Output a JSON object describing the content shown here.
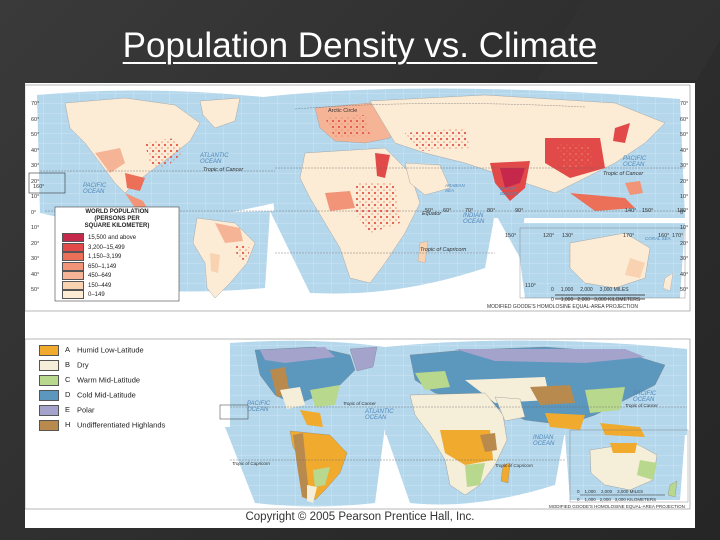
{
  "slide_title": "Population Density vs. Climate",
  "copyright": "Copyright © 2005 Pearson Prentice Hall, Inc.",
  "population_map": {
    "legend_title_lines": [
      "WORLD POPULATION",
      "(PERSONS PER",
      "SQUARE KILOMETER)"
    ],
    "legend": [
      {
        "label": "15,500 and above",
        "color": "#c6284c"
      },
      {
        "label": "3,200–15,499",
        "color": "#e24a4a"
      },
      {
        "label": "1,150–3,199",
        "color": "#ec7058"
      },
      {
        "label": "650–1,149",
        "color": "#f29478"
      },
      {
        "label": "450–649",
        "color": "#f6b496"
      },
      {
        "label": "150–449",
        "color": "#f9d2b2"
      },
      {
        "label": "0–149",
        "color": "#fcebd5"
      }
    ],
    "oceans": {
      "arctic": "Arctic Circle",
      "atlantic": [
        "ATLANTIC",
        "OCEAN"
      ],
      "pacific_w": [
        "PACIFIC",
        "OCEAN"
      ],
      "pacific_e": [
        "PACIFIC",
        "OCEAN"
      ],
      "indian": [
        "INDIAN",
        "OCEAN"
      ],
      "arabian": [
        "ARABIAN",
        "SEA"
      ],
      "bengal": [
        "BAY OF",
        "BENGAL"
      ],
      "coral": [
        "CORAL SEA"
      ]
    },
    "lines": {
      "cancer_w": "Tropic of Cancer",
      "cancer_e": "Tropic of Cancer",
      "equator": "Equator",
      "capricorn": "Tropic of Capricorn"
    },
    "scale": {
      "miles": [
        "0",
        "1,000",
        "2,000",
        "3,000 MILES"
      ],
      "km": [
        "0",
        "1,000",
        "2,000",
        "3,000 KILOMETERS"
      ]
    },
    "projection": "MODIFIED GOODE'S HOMOLOSINE EQUAL-AREA PROJECTION",
    "lat_labels_left": [
      "70°",
      "60°",
      "50°",
      "40°",
      "30°",
      "20°",
      "10°",
      "0°",
      "10°",
      "20°",
      "30°",
      "40°",
      "50°"
    ],
    "lat_labels_right": [
      "70°",
      "60°",
      "50°",
      "40°",
      "30°",
      "20°",
      "10°",
      "0°",
      "10°",
      "20°",
      "30°",
      "40°",
      "50°"
    ],
    "lon_labels": [
      "160°",
      "150°",
      "170°",
      "50°",
      "60°",
      "70°",
      "80°",
      "90°",
      "110°",
      "120°",
      "130°",
      "140°",
      "150°",
      "160°",
      "170°",
      "180°"
    ]
  },
  "climate_map": {
    "legend": [
      {
        "code": "A",
        "label": "Humid Low-Latitude",
        "color": "#f0ab2f"
      },
      {
        "code": "B",
        "label": "Dry",
        "color": "#f5eed9"
      },
      {
        "code": "C",
        "label": "Warm Mid-Latitude",
        "color": "#b8d88d"
      },
      {
        "code": "D",
        "label": "Cold Mid-Latitude",
        "color": "#5c97bd"
      },
      {
        "code": "E",
        "label": "Polar",
        "color": "#a3a3cc"
      },
      {
        "code": "H",
        "label": "Undifferentiated Highlands",
        "color": "#b98a4e"
      }
    ],
    "oceans": {
      "pacific_w": [
        "PACIFIC",
        "OCEAN"
      ],
      "atlantic": [
        "ATLANTIC",
        "OCEAN"
      ],
      "indian": [
        "INDIAN",
        "OCEAN"
      ],
      "pacific_e": [
        "PACIFIC",
        "OCEAN"
      ]
    },
    "lines": {
      "cancer_w": "Tropic of Cancer",
      "cancer_e": "Tropic of Cancer",
      "capricorn_w": "Tropic of Capricorn",
      "capricorn_e": "Tropic of Capricorn"
    },
    "scale": {
      "miles": [
        "0",
        "1,000",
        "2,000",
        "3,000 MILES"
      ],
      "km": [
        "0",
        "1,000",
        "2,000",
        "3,000 KILOMETERS"
      ]
    },
    "projection": "MODIFIED GOODE'S HOMOLOSINE EQUAL-AREA PROJECTION"
  }
}
